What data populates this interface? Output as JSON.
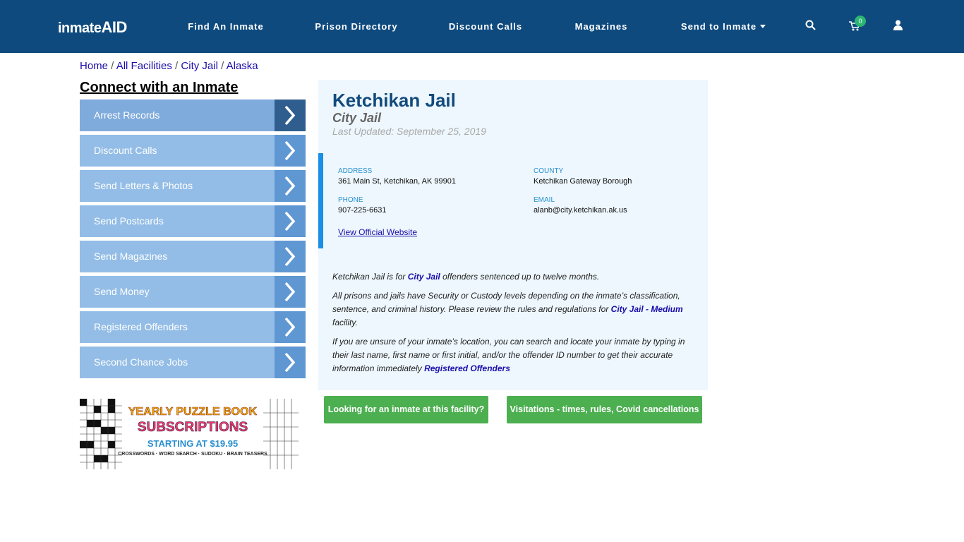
{
  "nav": {
    "logo": {
      "main": "inmate",
      "accent": "AID"
    },
    "items": [
      "Find An Inmate",
      "Prison Directory",
      "Discount Calls",
      "Magazines",
      "Send to Inmate"
    ],
    "cart_count": "0"
  },
  "breadcrumb": [
    "Home",
    "All Facilities",
    "City Jail",
    "Alaska"
  ],
  "sidebar": {
    "title": "Connect with an Inmate",
    "links": [
      "Arrest Records",
      "Discount Calls",
      "Send Letters & Photos",
      "Send Postcards",
      "Send Magazines",
      "Send Money",
      "Registered Offenders",
      "Second Chance Jobs"
    ]
  },
  "ad": {
    "line1": "YEARLY PUZZLE BOOK",
    "line2": "SUBSCRIPTIONS",
    "line3": "STARTING AT $19.95",
    "line4": "CROSSWORDS · WORD SEARCH · SUDOKU · BRAIN TEASERS"
  },
  "facility": {
    "title": "Ketchikan Jail",
    "subtitle": "City Jail",
    "updated": "Last Updated: September 25, 2019",
    "details": [
      {
        "label": "ADDRESS",
        "value": "361 Main St, Ketchikan, AK 99901"
      },
      {
        "label": "COUNTY",
        "value": "Ketchikan Gateway Borough"
      },
      {
        "label": "PHONE",
        "value": "907-225-6631"
      },
      {
        "label": "EMAIL",
        "value": "alanb@city.ketchikan.ak.us"
      }
    ],
    "website": "View Official Website",
    "paragraphs": [
      [
        "Ketchikan Jail is for ",
        "City Jail",
        " offenders sentenced up to twelve months."
      ],
      [
        "All prisons and jails have Security or Custody levels depending on the inmate’s classification, sentence, and criminal history. Please review the rules and regulations for ",
        "City Jail - Medium",
        " facility."
      ],
      [
        "If you are unsure of your inmate’s location, you can search and locate your inmate by typing in their last name, first name or first initial, and/or the offender ID number to get their accurate information immediately ",
        "Registered Offenders"
      ]
    ]
  },
  "buttons": [
    "Looking for an inmate at this facility?",
    "Visitations - times, rules, Covid cancellations"
  ]
}
